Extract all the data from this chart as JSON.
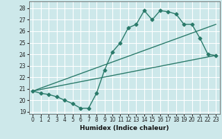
{
  "title": "",
  "xlabel": "Humidex (Indice chaleur)",
  "ylabel": "",
  "background_color": "#cde8ea",
  "grid_color": "#ffffff",
  "line_color": "#2a7a6a",
  "xlim": [
    -0.5,
    23.5
  ],
  "ylim": [
    18.8,
    28.6
  ],
  "yticks": [
    19,
    20,
    21,
    22,
    23,
    24,
    25,
    26,
    27,
    28
  ],
  "xticks": [
    0,
    1,
    2,
    3,
    4,
    5,
    6,
    7,
    8,
    9,
    10,
    11,
    12,
    13,
    14,
    15,
    16,
    17,
    18,
    19,
    20,
    21,
    22,
    23
  ],
  "line1_x": [
    0,
    1,
    2,
    3,
    4,
    5,
    6,
    7,
    8,
    9,
    10,
    11,
    12,
    13,
    14,
    15,
    16,
    17,
    18,
    19,
    20,
    21,
    22,
    23
  ],
  "line1_y": [
    20.8,
    20.6,
    20.5,
    20.3,
    20.0,
    19.7,
    19.3,
    19.3,
    20.6,
    22.6,
    24.2,
    25.0,
    26.3,
    26.6,
    27.8,
    27.0,
    27.8,
    27.7,
    27.5,
    26.6,
    26.6,
    25.4,
    24.0,
    23.9
  ],
  "line2_x": [
    0,
    23
  ],
  "line2_y": [
    20.8,
    23.9
  ],
  "line3_x": [
    0,
    23
  ],
  "line3_y": [
    20.8,
    26.6
  ]
}
